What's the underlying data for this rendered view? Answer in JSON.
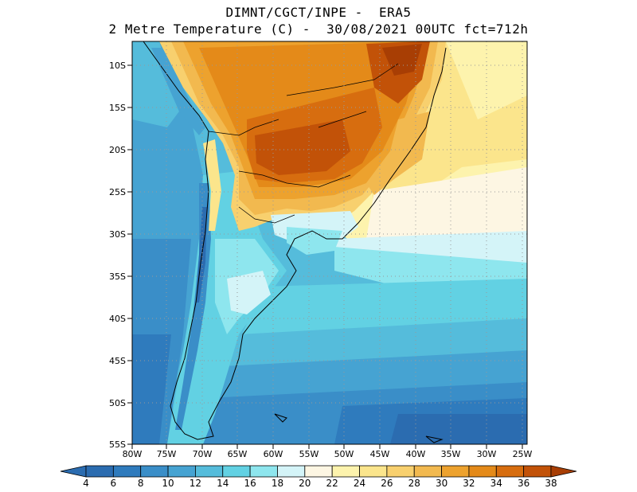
{
  "title_line1": "DIMNT/CGCT/INPE -  ERA5",
  "title_line2": "2 Metre Temperature (C) -  30/08/2021 00UTC fct=712h",
  "map": {
    "lat_labels": [
      "10S",
      "15S",
      "20S",
      "25S",
      "30S",
      "35S",
      "40S",
      "45S",
      "50S",
      "55S"
    ],
    "lon_labels": [
      "80W",
      "75W",
      "70W",
      "65W",
      "60W",
      "55W",
      "50W",
      "45W",
      "40W",
      "35W",
      "30W",
      "25W"
    ],
    "lat_range": [
      -55,
      -7
    ],
    "lon_range": [
      -80,
      -25
    ]
  },
  "colorbar": {
    "labels": [
      "4",
      "6",
      "8",
      "10",
      "12",
      "14",
      "16",
      "18",
      "20",
      "22",
      "24",
      "26",
      "28",
      "30",
      "32",
      "34",
      "36",
      "38"
    ],
    "colors": [
      "#2b6cb0",
      "#2f7bbd",
      "#3a8ec8",
      "#46a3d2",
      "#55bcdb",
      "#62d1e3",
      "#8ee6ee",
      "#d4f4f8",
      "#fdf6e3",
      "#fdf3ad",
      "#fbe58c",
      "#f8d06e",
      "#f2b94f",
      "#eda22e",
      "#e48a19",
      "#d76d0f",
      "#c25208",
      "#a83e04"
    ]
  }
}
